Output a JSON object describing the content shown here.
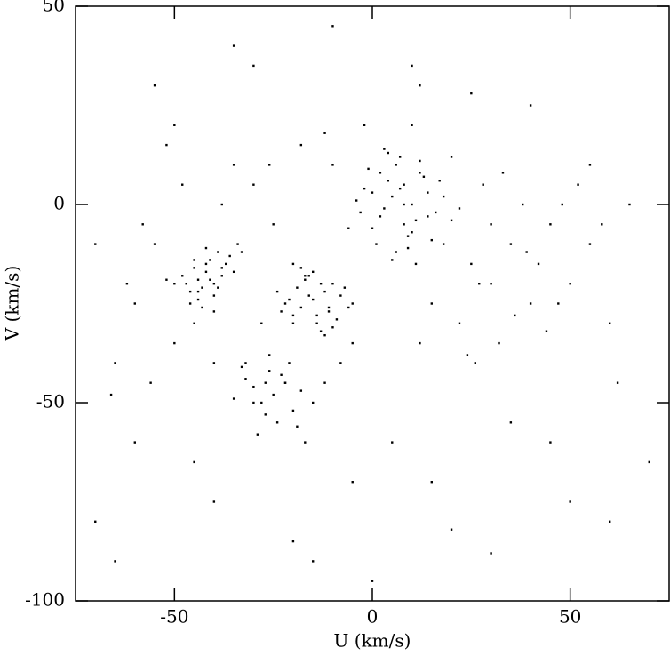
{
  "chart_data": {
    "type": "scatter",
    "x_label": "U (km/s)",
    "y_label": "V (km/s)",
    "color": "#000000",
    "xlim": [
      -75,
      75
    ],
    "ylim": [
      -100,
      50
    ],
    "xticks": [
      -50,
      0,
      50
    ],
    "yticks": [
      -100,
      -50,
      0,
      50
    ],
    "x": [
      -44,
      -42,
      -40,
      -45,
      -38,
      -43,
      -41,
      -46,
      -39,
      -37,
      -47,
      -44,
      -40,
      -36,
      -42,
      -48,
      -35,
      -43,
      -39,
      -45,
      -41,
      -34,
      -46,
      -38,
      -44,
      -50,
      -33,
      -42,
      -40,
      -52,
      -15,
      -12,
      -18,
      -10,
      -20,
      -14,
      -8,
      -16,
      -22,
      -11,
      -13,
      -19,
      -6,
      -17,
      -9,
      -24,
      -15,
      -12,
      -21,
      -7,
      -14,
      -18,
      -10,
      -16,
      -5,
      -23,
      -13,
      -20,
      -11,
      -17,
      5,
      8,
      2,
      10,
      12,
      0,
      6,
      3,
      14,
      -2,
      9,
      7,
      11,
      4,
      16,
      1,
      -4,
      13,
      6,
      8,
      18,
      -1,
      10,
      3,
      15,
      5,
      20,
      -3,
      12,
      7,
      9,
      2,
      17,
      -6,
      11,
      4,
      22,
      0,
      14,
      8,
      -55,
      -60,
      -30,
      -25,
      25,
      30,
      35,
      40,
      -5,
      -35,
      -28,
      -50,
      45,
      50,
      28,
      -20,
      15,
      22,
      -65,
      -10,
      32,
      38,
      -58,
      -48,
      55,
      60,
      -32,
      27,
      42,
      -27,
      -8,
      18,
      -45,
      36,
      48,
      -62,
      -2,
      -38,
      24,
      33,
      -52,
      -18,
      12,
      47,
      -70,
      58,
      -26,
      30,
      -40,
      20,
      -12,
      26,
      44,
      -56,
      39,
      -30,
      -22,
      10,
      52,
      -66,
      -25,
      -22,
      -28,
      -20,
      -30,
      -18,
      -26,
      -24,
      -32,
      -15,
      -27,
      -21,
      -35,
      -19,
      -23,
      -29,
      -12,
      -33,
      -17,
      -26,
      -70,
      -65,
      -40,
      -20,
      0,
      15,
      30,
      45,
      60,
      70,
      -55,
      -35,
      -10,
      10,
      25,
      40,
      55,
      65,
      -60,
      -5,
      35,
      50,
      -45,
      -15,
      20,
      5,
      -30,
      62,
      -50,
      12
    ],
    "y": [
      -19,
      -17,
      -20,
      -16,
      -18,
      -21,
      -14,
      -22,
      -12,
      -15,
      -20,
      -24,
      -23,
      -13,
      -11,
      -18,
      -17,
      -26,
      -21,
      -14,
      -19,
      -10,
      -25,
      -16,
      -22,
      -20,
      -12,
      -15,
      -27,
      -19,
      -24,
      -22,
      -26,
      -20,
      -28,
      -30,
      -23,
      -18,
      -25,
      -27,
      -32,
      -21,
      -26,
      -19,
      -29,
      -22,
      -17,
      -33,
      -24,
      -21,
      -28,
      -16,
      -31,
      -23,
      -25,
      -27,
      -20,
      -30,
      -26,
      -18,
      2,
      5,
      -3,
      0,
      8,
      -6,
      10,
      -1,
      3,
      4,
      -8,
      12,
      -4,
      6,
      -2,
      -10,
      1,
      7,
      -12,
      -5,
      2,
      9,
      -7,
      14,
      -9,
      -14,
      -4,
      -2,
      11,
      4,
      -11,
      8,
      6,
      -6,
      -15,
      13,
      -1,
      3,
      -3,
      0,
      -10,
      -25,
      5,
      -5,
      -15,
      -20,
      -10,
      -25,
      -35,
      10,
      -30,
      -35,
      -5,
      -20,
      5,
      -15,
      -25,
      -30,
      -40,
      10,
      -35,
      0,
      -5,
      5,
      -10,
      -30,
      -40,
      -20,
      -15,
      -45,
      -40,
      -10,
      -30,
      -28,
      0,
      -20,
      20,
      0,
      -38,
      8,
      15,
      15,
      -35,
      -25,
      -10,
      -5,
      10,
      -5,
      -40,
      12,
      18,
      -40,
      -32,
      -45,
      -12,
      -50,
      -45,
      20,
      5,
      -48,
      -48,
      -45,
      -50,
      -52,
      -46,
      -47,
      -42,
      -55,
      -44,
      -50,
      -53,
      -40,
      -49,
      -56,
      -43,
      -58,
      -45,
      -41,
      -60,
      -38,
      -80,
      -90,
      -75,
      -85,
      -95,
      -70,
      -88,
      -60,
      -80,
      -65,
      30,
      40,
      45,
      35,
      28,
      25,
      10,
      0,
      -60,
      -70,
      -55,
      -75,
      -65,
      -90,
      -82,
      -60,
      35,
      -45,
      20,
      30
    ]
  }
}
